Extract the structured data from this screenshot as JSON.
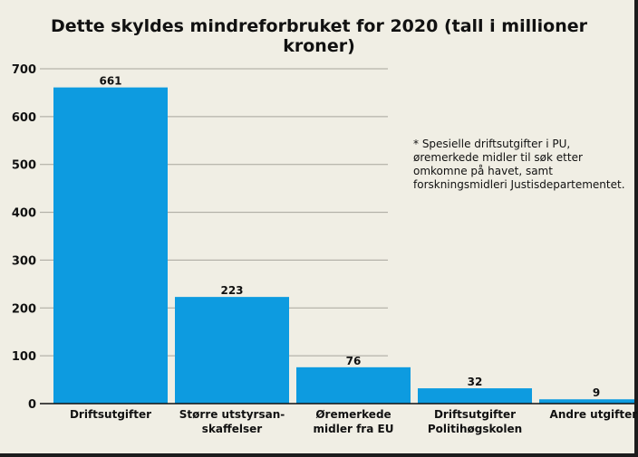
{
  "chart_data": {
    "type": "bar",
    "title": "Dette skyldes mindreforbruket for 2020 (tall i millioner kroner)",
    "categories": [
      [
        "Driftsutgifter"
      ],
      [
        "Større utstyrsan-",
        "skaffelser"
      ],
      [
        "Øremerkede",
        "midler fra EU"
      ],
      [
        "Driftsutgifter",
        "Politihøgskolen"
      ],
      [
        "Andre utgifter*"
      ]
    ],
    "values": [
      661,
      223,
      76,
      32,
      9
    ],
    "data_labels": [
      "661",
      "223",
      "76",
      "32",
      "9"
    ],
    "ylim": [
      0,
      700
    ],
    "yticks": [
      "0",
      "100",
      "200",
      "300",
      "400",
      "500",
      "600",
      "700"
    ],
    "xlabel": "",
    "ylabel": "",
    "grid": true,
    "bar_color": "#0d9be0",
    "footnote": "* Spesielle driftsutgifter i PU, øremerkede midler til søk etter omkomne på havet, samt forskningsmidleri Justisdepartementet."
  }
}
